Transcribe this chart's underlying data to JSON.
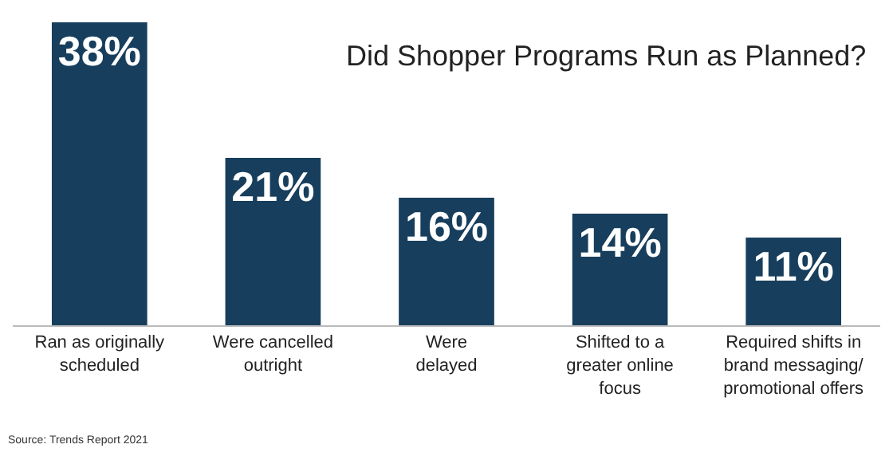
{
  "chart_data": {
    "type": "bar",
    "title": "Did Shopper Programs Run as Planned?",
    "categories": [
      "Ran as originally\nscheduled",
      "Were cancelled\noutright",
      "Were\ndelayed",
      "Shifted to a\ngreater online\nfocus",
      "Required shifts in\nbrand messaging/\npromotional offers"
    ],
    "values": [
      38,
      21,
      16,
      14,
      11
    ],
    "value_labels": [
      "38%",
      "21%",
      "16%",
      "14%",
      "11%"
    ],
    "color": "#173e5c",
    "annotations": [
      "Source: Trends Report 2021"
    ]
  }
}
